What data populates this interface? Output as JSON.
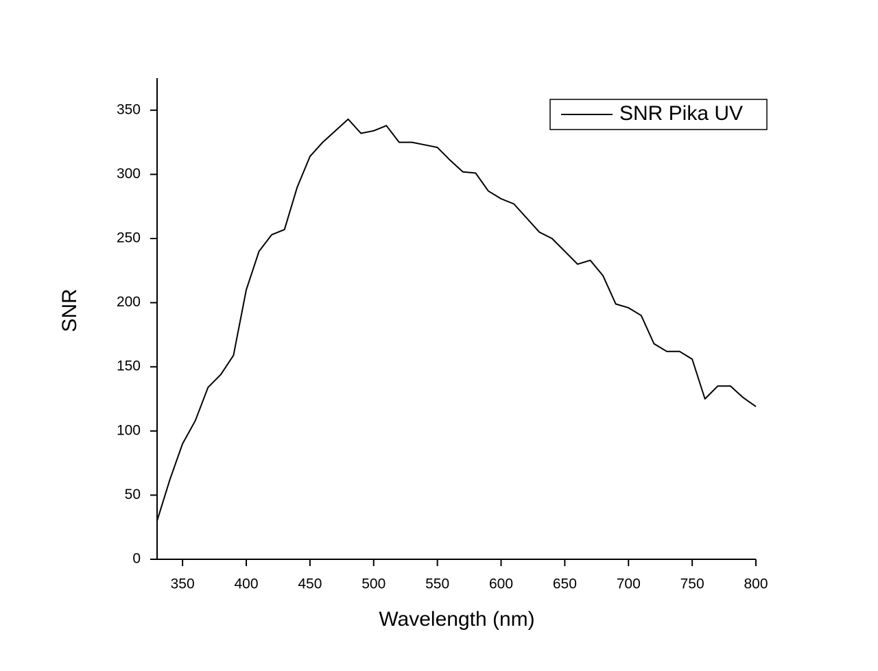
{
  "chart_data": {
    "type": "line",
    "x_label": "Wavelength (nm)",
    "y_label": "SNR",
    "x": [
      330,
      340,
      350,
      360,
      370,
      380,
      390,
      400,
      410,
      420,
      430,
      440,
      450,
      460,
      470,
      480,
      490,
      500,
      510,
      520,
      530,
      540,
      550,
      560,
      570,
      580,
      590,
      600,
      610,
      620,
      630,
      640,
      650,
      660,
      670,
      680,
      690,
      700,
      710,
      720,
      730,
      740,
      750,
      760,
      770,
      780,
      790,
      800
    ],
    "series": [
      {
        "name": "SNR Pika UV",
        "color": "#000000",
        "values": [
          30,
          62,
          90,
          108,
          134,
          144,
          159,
          210,
          240,
          253,
          257,
          290,
          314,
          325,
          334,
          343,
          332,
          334,
          338,
          325,
          325,
          323,
          321,
          311,
          302,
          301,
          287,
          281,
          277,
          266,
          255,
          250,
          240,
          230,
          233,
          221,
          199,
          196,
          190,
          168,
          162,
          162,
          156,
          125,
          135,
          135,
          126,
          119
        ]
      }
    ],
    "xlim": [
      330,
      800
    ],
    "xticks": [
      350,
      400,
      450,
      500,
      550,
      600,
      650,
      700,
      750,
      800
    ],
    "ylim": [
      0,
      375
    ],
    "yticks": [
      0,
      50,
      100,
      150,
      200,
      250,
      300,
      350
    ],
    "legend": "upper right"
  }
}
